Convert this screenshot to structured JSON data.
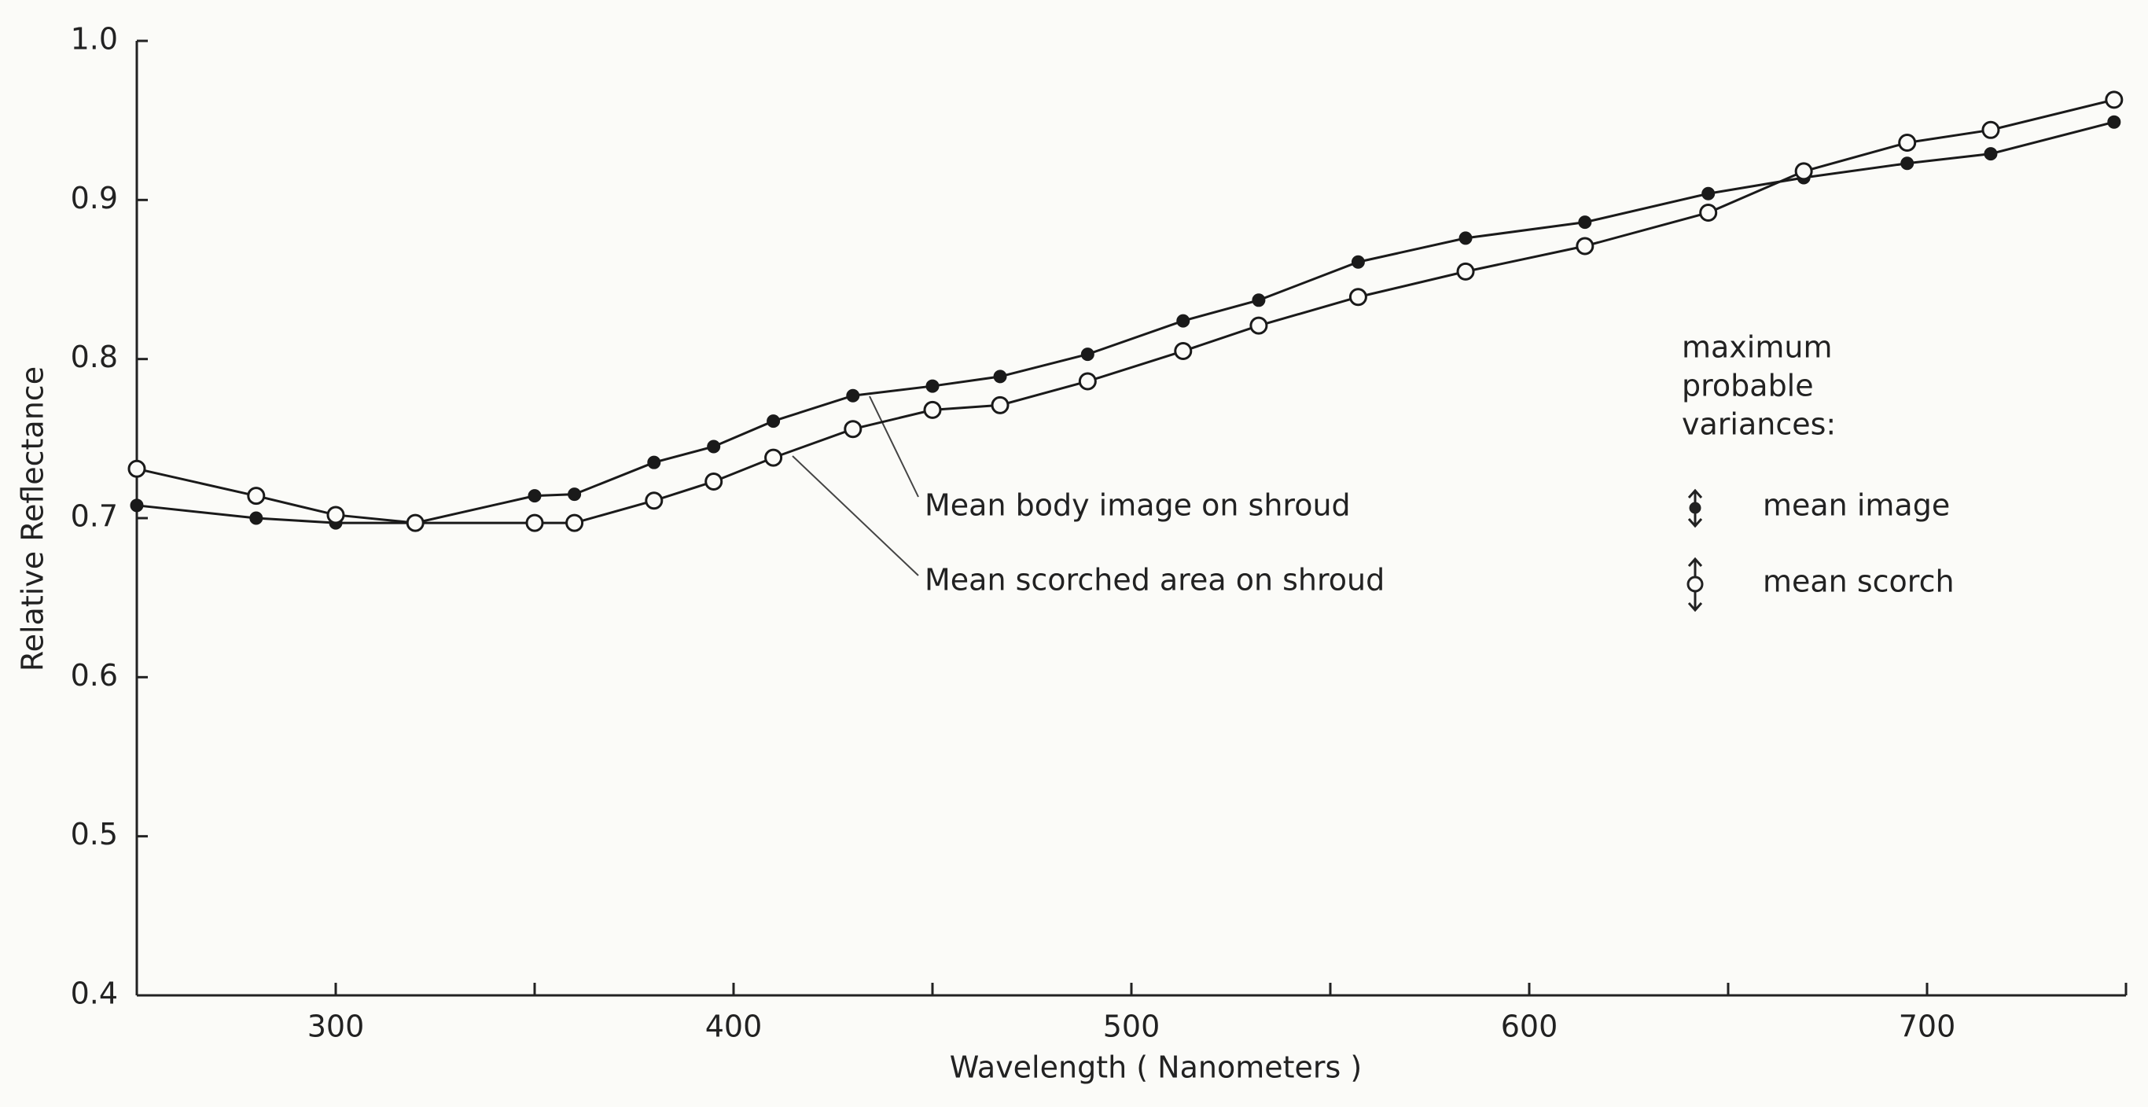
{
  "chart_data": {
    "type": "line",
    "xlabel": "Wavelength ( Nanometers )",
    "ylabel": "Relative Reflectance",
    "xlim": [
      250,
      750
    ],
    "xticks": [
      300,
      400,
      500,
      600,
      700
    ],
    "xticks_minor": [
      350,
      450,
      550,
      650,
      750
    ],
    "ylim": [
      0.4,
      1.0
    ],
    "yticks": [
      0.4,
      0.5,
      0.6,
      0.7,
      0.8,
      0.9,
      {
        "value": 1,
        "label": "1.0"
      }
    ],
    "series": [
      {
        "name": "Mean body image on shroud",
        "color": "#1a1a1a",
        "marker": "filled",
        "x": [
          250,
          280,
          300,
          320,
          350,
          360,
          380,
          395,
          410,
          430,
          450,
          467,
          489,
          513,
          532,
          557,
          584,
          614,
          645,
          669,
          695,
          716,
          747
        ],
        "values": [
          0.708,
          0.7,
          0.697,
          0.697,
          0.714,
          0.715,
          0.735,
          0.745,
          0.761,
          0.777,
          0.783,
          0.789,
          0.803,
          0.824,
          0.837,
          0.861,
          0.876,
          0.886,
          0.904,
          0.914,
          0.923,
          0.929,
          0.949
        ]
      },
      {
        "name": "Mean scorched area on shroud",
        "color": "#1a1a1a",
        "marker": "open",
        "x": [
          250,
          280,
          300,
          320,
          350,
          360,
          380,
          395,
          410,
          430,
          450,
          467,
          489,
          513,
          532,
          557,
          584,
          614,
          645,
          669,
          695,
          716,
          747
        ],
        "values": [
          0.731,
          0.714,
          0.702,
          0.697,
          0.697,
          0.697,
          0.711,
          0.723,
          0.738,
          0.756,
          0.768,
          0.771,
          0.786,
          0.805,
          0.821,
          0.839,
          0.855,
          0.871,
          0.892,
          0.918,
          0.936,
          0.944,
          0.963
        ]
      }
    ],
    "variance_legend": {
      "title": [
        "maximum",
        "probable",
        "variances:"
      ],
      "entries": [
        "mean image",
        "mean scorch"
      ]
    }
  }
}
